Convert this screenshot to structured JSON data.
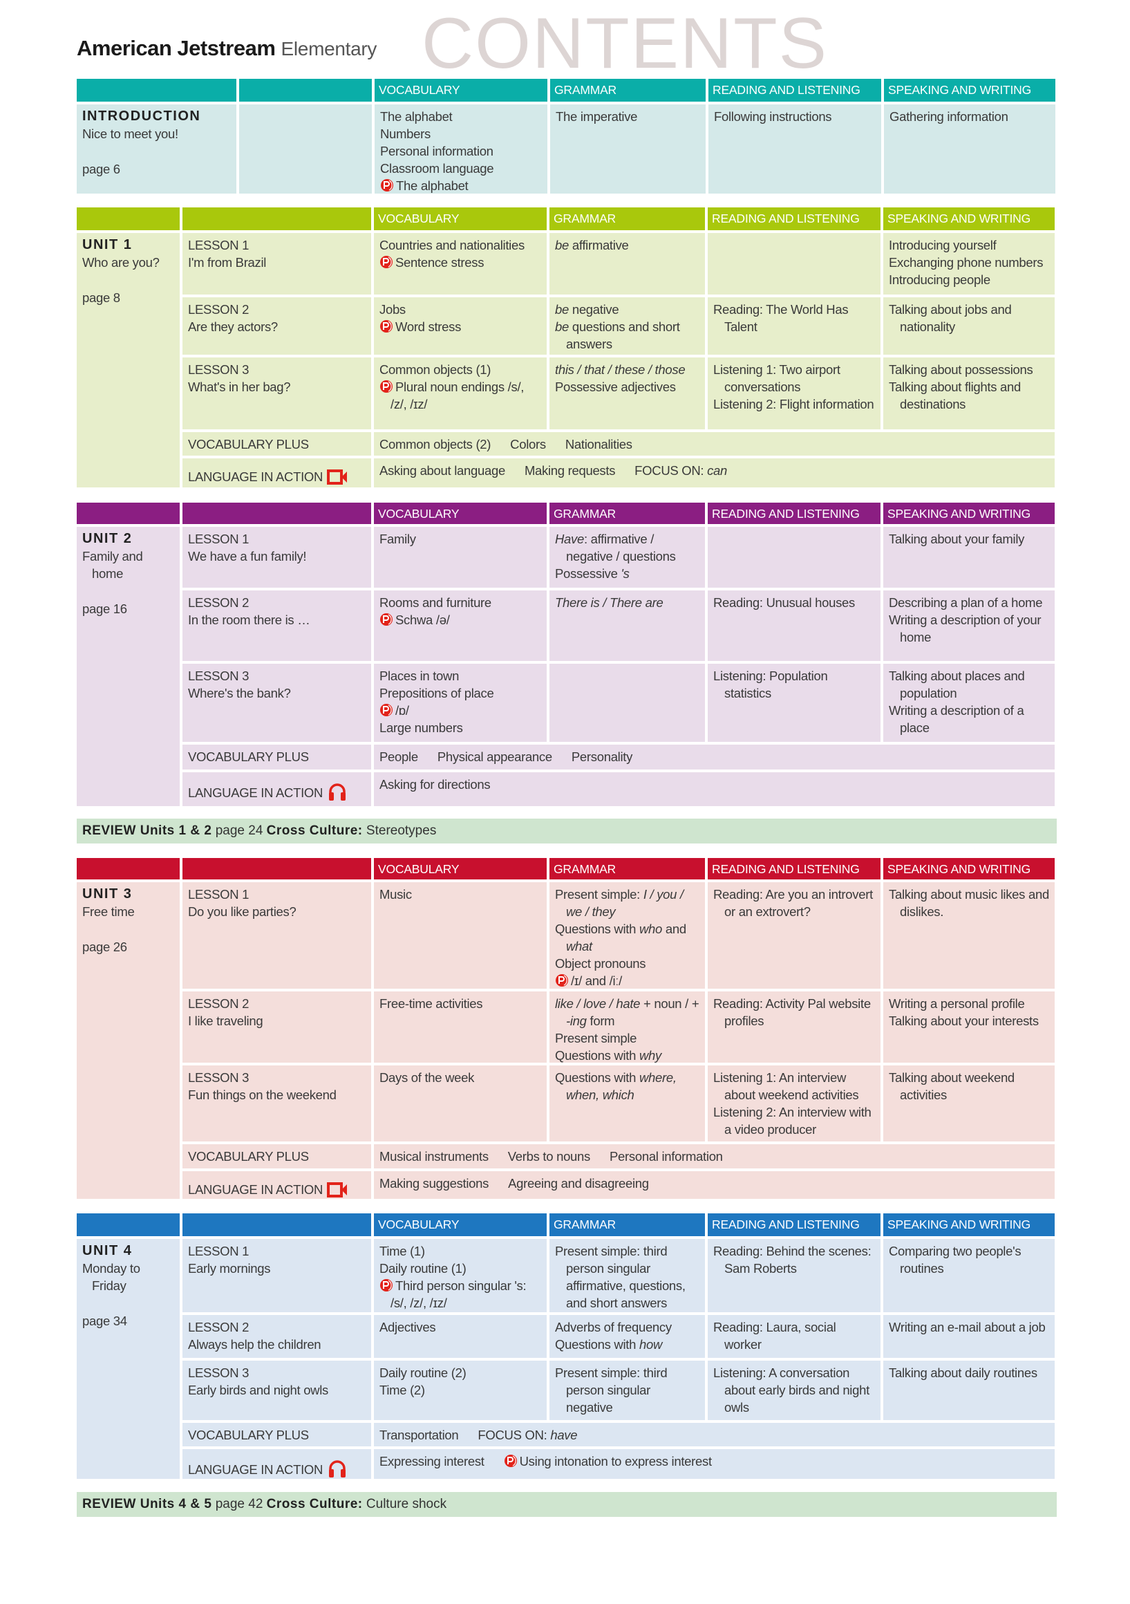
{
  "header": {
    "brand": "American Jetstream",
    "edition": "Elementary",
    "watermark": "CONTENTS"
  },
  "columns": {
    "vocabulary": "VOCABULARY",
    "grammar": "GRAMMAR",
    "reading_listening": "READING AND LISTENING",
    "speaking_writing": "SPEAKING AND WRITING"
  },
  "intro": {
    "heading": "INTRODUCTION",
    "title": "Nice to meet you!",
    "page": "page 6",
    "header_color": "#0aaea8",
    "body_color": "#d4e9e9",
    "vocabulary": [
      "The alphabet",
      "Numbers",
      "Personal information",
      "Classroom language",
      {
        "p": true,
        "s": [
          "The alphabet"
        ]
      }
    ],
    "grammar": [
      "The imperative"
    ],
    "reading_listening": [
      "Following instructions"
    ],
    "speaking_writing": [
      "Gathering information"
    ]
  },
  "units": [
    {
      "label": "UNIT 1",
      "title": "Who are you?",
      "page": "page 8",
      "header_color": "#a9c80c",
      "body_color": "#e7eecb",
      "lessons": [
        {
          "label": "LESSON 1",
          "title": "I'm from Brazil",
          "vocabulary": [
            "Countries and nationalities",
            {
              "p": true,
              "s": [
                "Sentence stress"
              ]
            }
          ],
          "grammar": [
            {
              "s": [
                "",
                "be",
                " affirmative"
              ]
            }
          ],
          "reading_listening": [],
          "speaking_writing": [
            "Introducing yourself",
            "Exchanging phone numbers",
            "Introducing people"
          ]
        },
        {
          "label": "LESSON 2",
          "title": "Are they actors?",
          "vocabulary": [
            "Jobs",
            {
              "p": true,
              "s": [
                "Word stress"
              ]
            }
          ],
          "grammar": [
            {
              "s": [
                "",
                "be",
                " negative"
              ]
            },
            {
              "s": [
                "",
                "be",
                " questions and short answers"
              ]
            }
          ],
          "reading_listening": [
            "Reading: The World Has Talent"
          ],
          "speaking_writing": [
            "Talking about jobs and nationality"
          ]
        },
        {
          "label": "LESSON 3",
          "title": "What's in her bag?",
          "vocabulary": [
            "Common objects (1)",
            {
              "p": true,
              "s": [
                "Plural noun endings /s/, /z/, /ɪz/"
              ]
            }
          ],
          "grammar": [
            {
              "s": [
                "",
                "this / that / these / those"
              ]
            },
            "Possessive adjectives"
          ],
          "reading_listening": [
            "Listening 1: Two airport conversations",
            "Listening 2: Flight information"
          ],
          "speaking_writing": [
            "Talking about possessions",
            "Talking about flights and destinations"
          ]
        }
      ],
      "vocabulary_plus": {
        "label": "VOCABULARY PLUS",
        "items": [
          "Common objects (2)",
          "Colors",
          "Nationalities"
        ]
      },
      "language_in_action": {
        "label": "LANGUAGE IN ACTION",
        "icon": "video-icon",
        "items": [
          "Asking about language",
          "Making requests",
          {
            "s": [
              "FOCUS ON: ",
              "can"
            ]
          }
        ]
      }
    },
    {
      "label": "UNIT 2",
      "title": "Family and home",
      "page": "page 16",
      "header_color": "#8b1e82",
      "body_color": "#e9dcea",
      "lessons": [
        {
          "label": "LESSON 1",
          "title": "We have a fun family!",
          "vocabulary": [
            "Family"
          ],
          "grammar": [
            {
              "s": [
                "",
                "Have",
                ": affirmative / negative / questions"
              ]
            },
            {
              "s": [
                "Possessive ",
                "'s"
              ]
            }
          ],
          "reading_listening": [],
          "speaking_writing": [
            "Talking about your family"
          ]
        },
        {
          "label": "LESSON 2",
          "title": "In the room there is …",
          "vocabulary": [
            "Rooms and furniture",
            {
              "p": true,
              "s": [
                "Schwa /ə/"
              ]
            }
          ],
          "grammar": [
            {
              "s": [
                "",
                "There is / There are"
              ]
            }
          ],
          "reading_listening": [
            "Reading: Unusual houses"
          ],
          "speaking_writing": [
            "Describing a plan of a home",
            "Writing a description of your home"
          ]
        },
        {
          "label": "LESSON 3",
          "title": "Where's the bank?",
          "vocabulary": [
            "Places in town",
            "Prepositions of place",
            {
              "p": true,
              "s": [
                "/ɒ/"
              ]
            },
            "Large numbers"
          ],
          "grammar": [],
          "reading_listening": [
            "Listening: Population statistics"
          ],
          "speaking_writing": [
            "Talking about places and population",
            "Writing a description of a place"
          ]
        }
      ],
      "vocabulary_plus": {
        "label": "VOCABULARY PLUS",
        "items": [
          "People",
          "Physical appearance",
          "Personality"
        ]
      },
      "language_in_action": {
        "label": "LANGUAGE IN ACTION",
        "icon": "headphones-icon",
        "items": [
          "Asking for directions"
        ]
      }
    },
    {
      "label": "UNIT 3",
      "title": "Free time",
      "page": "page 26",
      "header_color": "#c8102e",
      "body_color": "#f4dedb",
      "lessons": [
        {
          "label": "LESSON 1",
          "title": "Do you like parties?",
          "vocabulary": [
            "Music"
          ],
          "grammar": [
            {
              "s": [
                "Present simple: ",
                "I / you / we / they"
              ]
            },
            {
              "s": [
                "Questions with ",
                "who",
                " and ",
                "what"
              ]
            },
            "Object pronouns",
            {
              "p": true,
              "s": [
                "/ɪ/ and /iː/"
              ]
            }
          ],
          "reading_listening": [
            "Reading: Are you an introvert or an extrovert?"
          ],
          "speaking_writing": [
            "Talking about music likes and dislikes."
          ]
        },
        {
          "label": "LESSON 2",
          "title": "I like traveling",
          "vocabulary": [
            "Free-time activities"
          ],
          "grammar": [
            {
              "s": [
                "",
                "like / love / hate",
                " + noun / + ",
                "-ing",
                " form"
              ]
            },
            "Present simple",
            {
              "s": [
                "Questions with ",
                "why"
              ]
            }
          ],
          "reading_listening": [
            "Reading: Activity Pal website profiles"
          ],
          "speaking_writing": [
            "Writing a personal profile",
            "Talking about your interests"
          ]
        },
        {
          "label": "LESSON 3",
          "title": "Fun things on the weekend",
          "vocabulary": [
            "Days of the week"
          ],
          "grammar": [
            {
              "s": [
                "Questions with ",
                "where, when, which"
              ]
            }
          ],
          "reading_listening": [
            "Listening 1: An interview about weekend activities",
            "Listening 2: An interview with a video producer"
          ],
          "speaking_writing": [
            "Talking about weekend activities"
          ]
        }
      ],
      "vocabulary_plus": {
        "label": "VOCABULARY PLUS",
        "items": [
          "Musical instruments",
          "Verbs to nouns",
          "Personal information"
        ]
      },
      "language_in_action": {
        "label": "LANGUAGE IN ACTION",
        "icon": "video-icon",
        "items": [
          "Making suggestions",
          "Agreeing and disagreeing"
        ]
      }
    },
    {
      "label": "UNIT 4",
      "title": "Monday to Friday",
      "page": "page 34",
      "header_color": "#1e77c0",
      "body_color": "#dce6f2",
      "lessons": [
        {
          "label": "LESSON 1",
          "title": "Early mornings",
          "vocabulary": [
            "Time (1)",
            "Daily routine (1)",
            {
              "p": true,
              "s": [
                "Third person singular 's: /s/, /z/, /ɪz/"
              ]
            }
          ],
          "grammar": [
            "Present simple: third person singular affirmative, questions, and short answers"
          ],
          "reading_listening": [
            "Reading: Behind the scenes: Sam Roberts"
          ],
          "speaking_writing": [
            "Comparing two people's routines"
          ]
        },
        {
          "label": "LESSON 2",
          "title": "Always help the children",
          "vocabulary": [
            "Adjectives"
          ],
          "grammar": [
            "Adverbs of frequency",
            {
              "s": [
                "Questions with ",
                "how"
              ]
            }
          ],
          "reading_listening": [
            "Reading: Laura, social worker"
          ],
          "speaking_writing": [
            "Writing an e-mail about a job"
          ]
        },
        {
          "label": "LESSON 3",
          "title": "Early birds and night owls",
          "vocabulary": [
            "Daily routine (2)",
            "Time (2)"
          ],
          "grammar": [
            "Present simple: third person singular negative"
          ],
          "reading_listening": [
            "Listening: A conversation about early birds and night owls"
          ],
          "speaking_writing": [
            "Talking about daily routines"
          ]
        }
      ],
      "vocabulary_plus": {
        "label": "VOCABULARY PLUS",
        "items": [
          "Transportation",
          {
            "s": [
              "FOCUS ON: ",
              "have"
            ]
          }
        ]
      },
      "language_in_action": {
        "label": "LANGUAGE IN ACTION",
        "icon": "headphones-icon",
        "items": [
          "Expressing interest",
          {
            "p": true,
            "s": [
              "Using intonation to express interest"
            ]
          }
        ]
      }
    }
  ],
  "reviews": [
    {
      "units_label": "REVIEW Units 1 & 2",
      "page": "page 24",
      "culture_label": "Cross Culture:",
      "culture": "Stereotypes"
    },
    {
      "units_label": "REVIEW Units 4 & 5",
      "page": "page 42",
      "culture_label": "Cross Culture:",
      "culture": "Culture shock"
    }
  ],
  "colors": {
    "icon_red": "#e2231a",
    "review_bg": "#cfe5cf"
  }
}
